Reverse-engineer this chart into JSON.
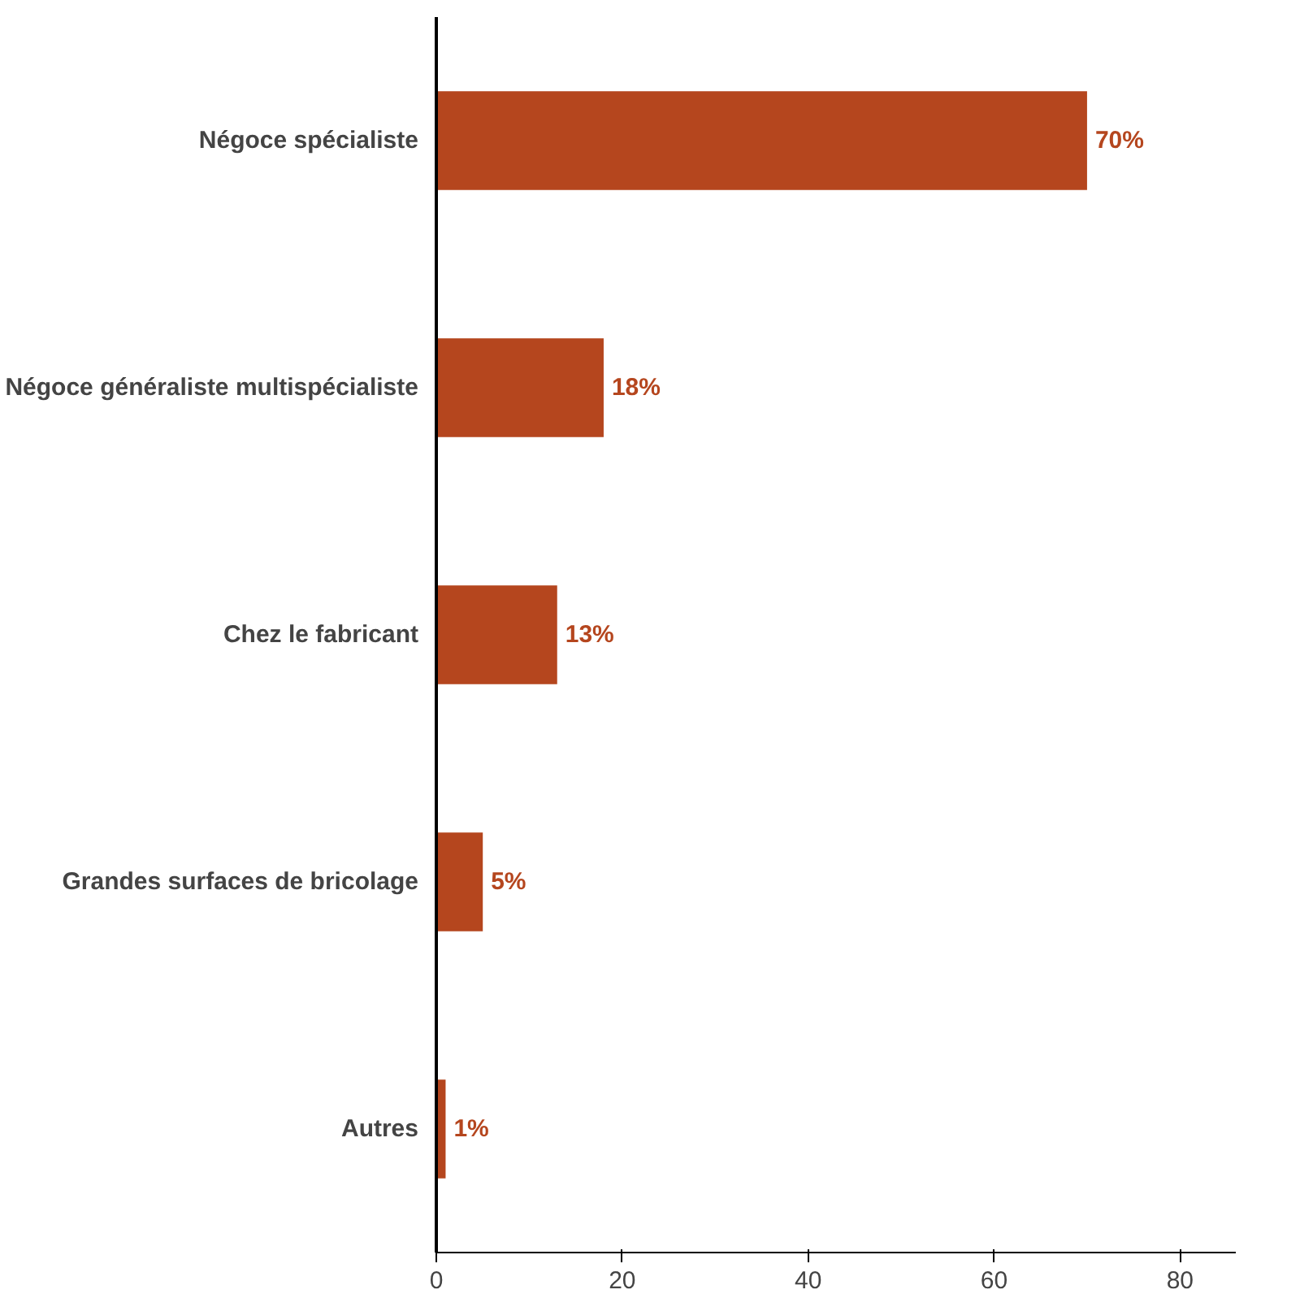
{
  "chart_data": {
    "type": "bar",
    "orientation": "horizontal",
    "categories": [
      "Négoce spécialiste",
      "Négoce généraliste multispécialiste",
      "Chez le fabricant",
      "Grandes surfaces de bricolage",
      "Autres"
    ],
    "values": [
      70,
      18,
      13,
      5,
      1
    ],
    "value_labels": [
      "70%",
      "18%",
      "13%",
      "5%",
      "1%"
    ],
    "color": "#b5461e",
    "xlim": [
      0,
      86
    ],
    "xticks": [
      0,
      20,
      40,
      60,
      80
    ]
  }
}
